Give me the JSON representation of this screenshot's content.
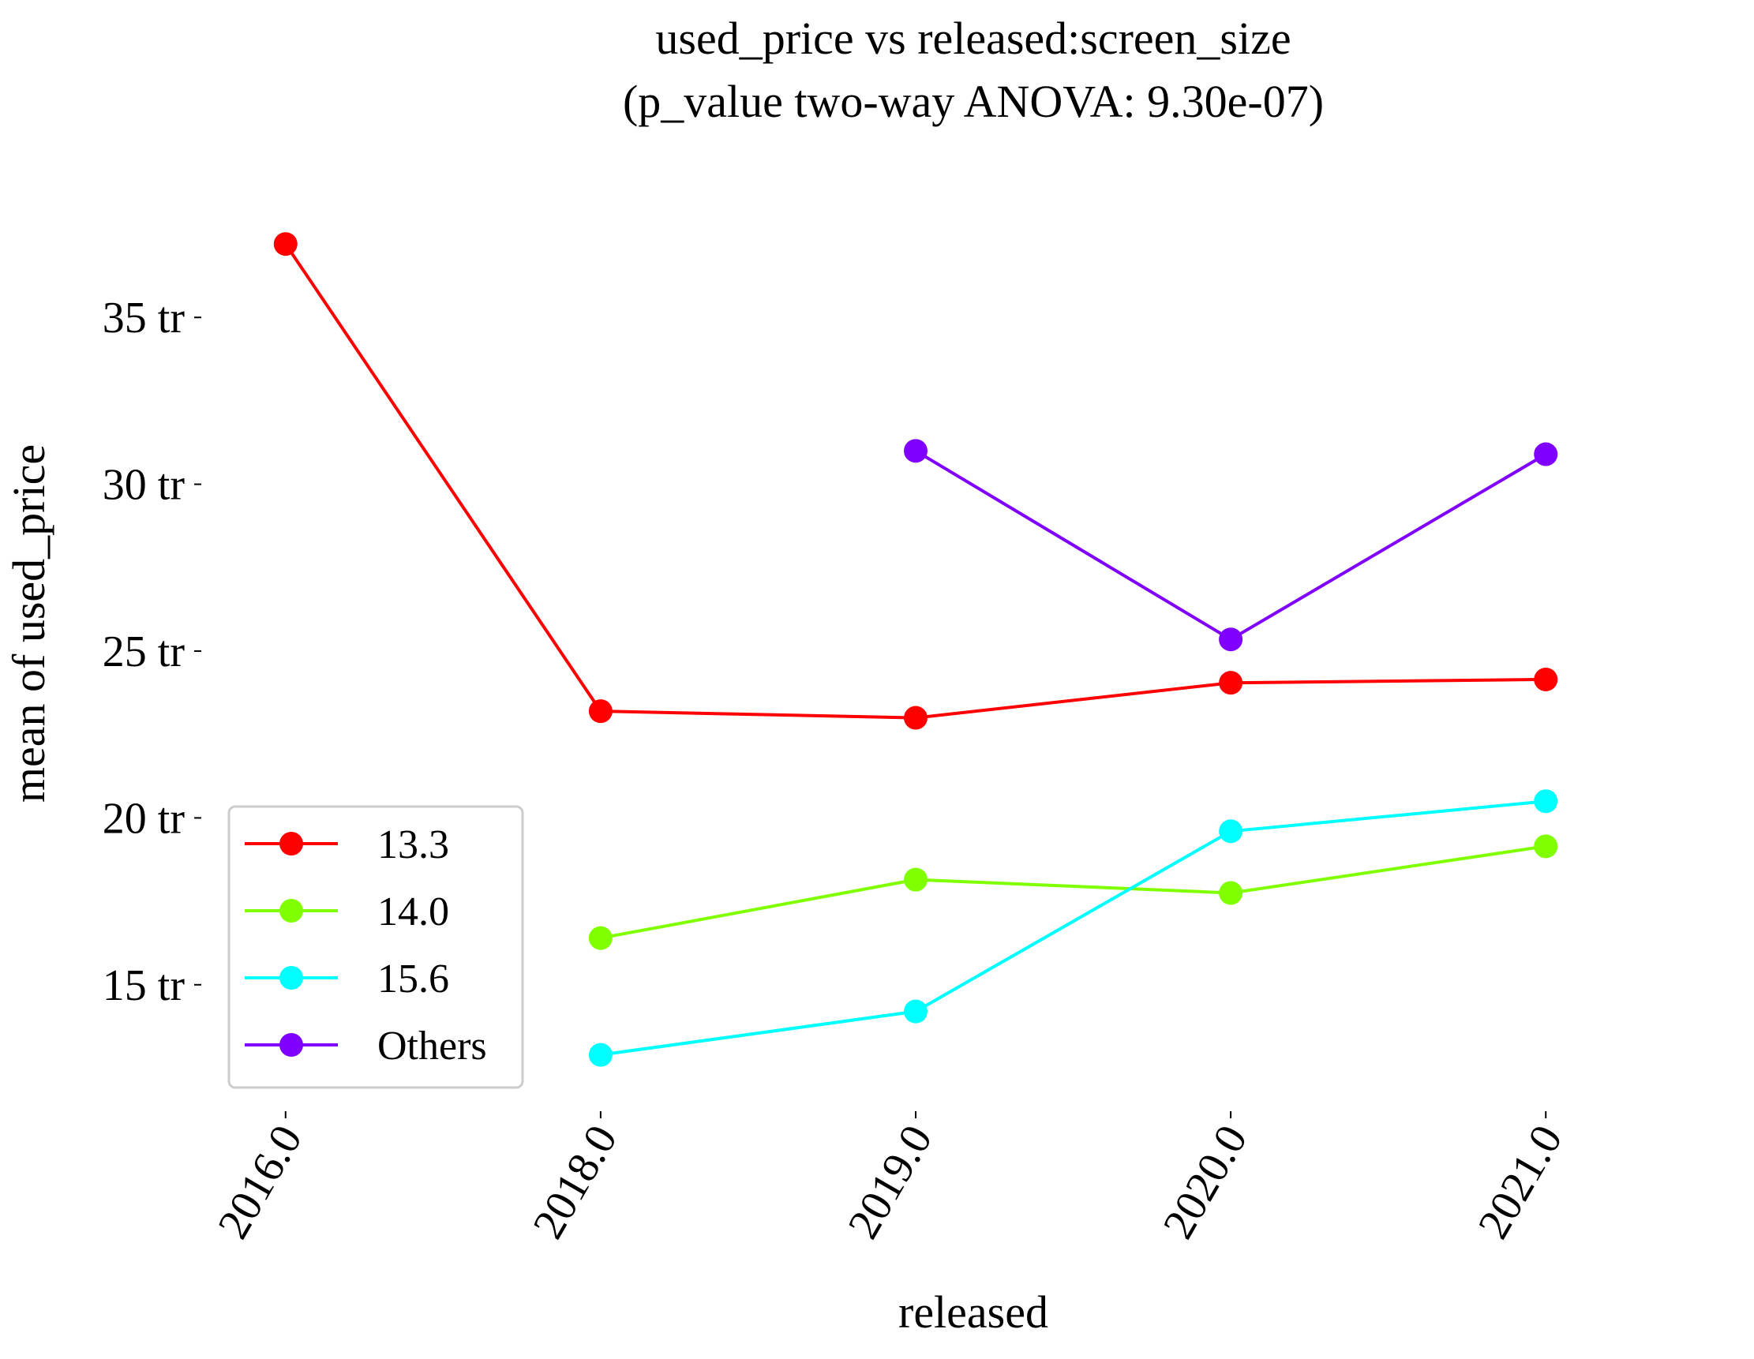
{
  "chart_data": {
    "type": "line",
    "title": "used_price vs released:screen_size",
    "subtitle": "(p_value two-way ANOVA: 9.30e-07)",
    "xlabel": "released",
    "ylabel": "mean of used_price",
    "categories": [
      "2016.0",
      "2018.0",
      "2019.0",
      "2020.0",
      "2021.0"
    ],
    "y_ticks": [
      {
        "value": 15,
        "label": "15 tr"
      },
      {
        "value": 20,
        "label": "20 tr"
      },
      {
        "value": 25,
        "label": "25 tr"
      },
      {
        "value": 30,
        "label": "30 tr"
      },
      {
        "value": 35,
        "label": "35 tr"
      }
    ],
    "ylim": [
      11.4,
      38.6
    ],
    "grid": false,
    "legend_position": "lower-left",
    "series": [
      {
        "name": "13.3",
        "color": "#ff0000",
        "values": [
          37.2,
          23.2,
          23.0,
          24.05,
          24.15
        ]
      },
      {
        "name": "14.0",
        "color": "#80ff00",
        "values": [
          null,
          16.4,
          18.15,
          17.75,
          19.15
        ]
      },
      {
        "name": "15.6",
        "color": "#00ffff",
        "values": [
          null,
          12.9,
          14.2,
          19.6,
          20.5
        ]
      },
      {
        "name": "Others",
        "color": "#8000ff",
        "values": [
          null,
          null,
          31.0,
          25.35,
          30.9
        ]
      }
    ]
  }
}
